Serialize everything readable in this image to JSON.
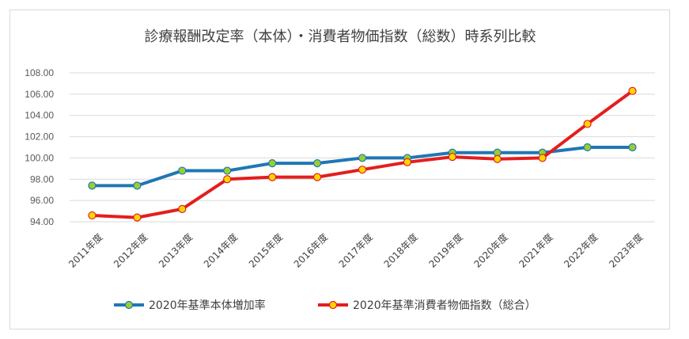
{
  "chart_data": {
    "type": "line",
    "title": "診療報酬改定率（本体）・消費者物価指数（総数）時系列比較",
    "categories": [
      "2011年度",
      "2012年度",
      "2013年度",
      "2014年度",
      "2015年度",
      "2016年度",
      "2017年度",
      "2018年度",
      "2019年度",
      "2020年度",
      "2021年度",
      "2022年度",
      "2023年度"
    ],
    "ylim": [
      94.0,
      108.0
    ],
    "yticks": [
      "108.00",
      "106.00",
      "104.00",
      "102.00",
      "100.00",
      "98.00",
      "96.00",
      "94.00"
    ],
    "grid": true,
    "legend_position": "bottom",
    "series": [
      {
        "name": "2020年基準本体増加率",
        "color": "#1f77b4",
        "marker_color": "#9acd32",
        "values": [
          97.4,
          97.4,
          98.8,
          98.8,
          99.5,
          99.5,
          100.0,
          100.0,
          100.5,
          100.5,
          100.5,
          101.0,
          101.0
        ]
      },
      {
        "name": "2020年基準消費者物価指数（総合）",
        "color": "#e31e1e",
        "marker_color": "#ffd700",
        "values": [
          94.6,
          94.4,
          95.2,
          98.0,
          98.2,
          98.2,
          98.9,
          99.6,
          100.1,
          99.9,
          100.0,
          103.2,
          106.3
        ]
      }
    ]
  }
}
